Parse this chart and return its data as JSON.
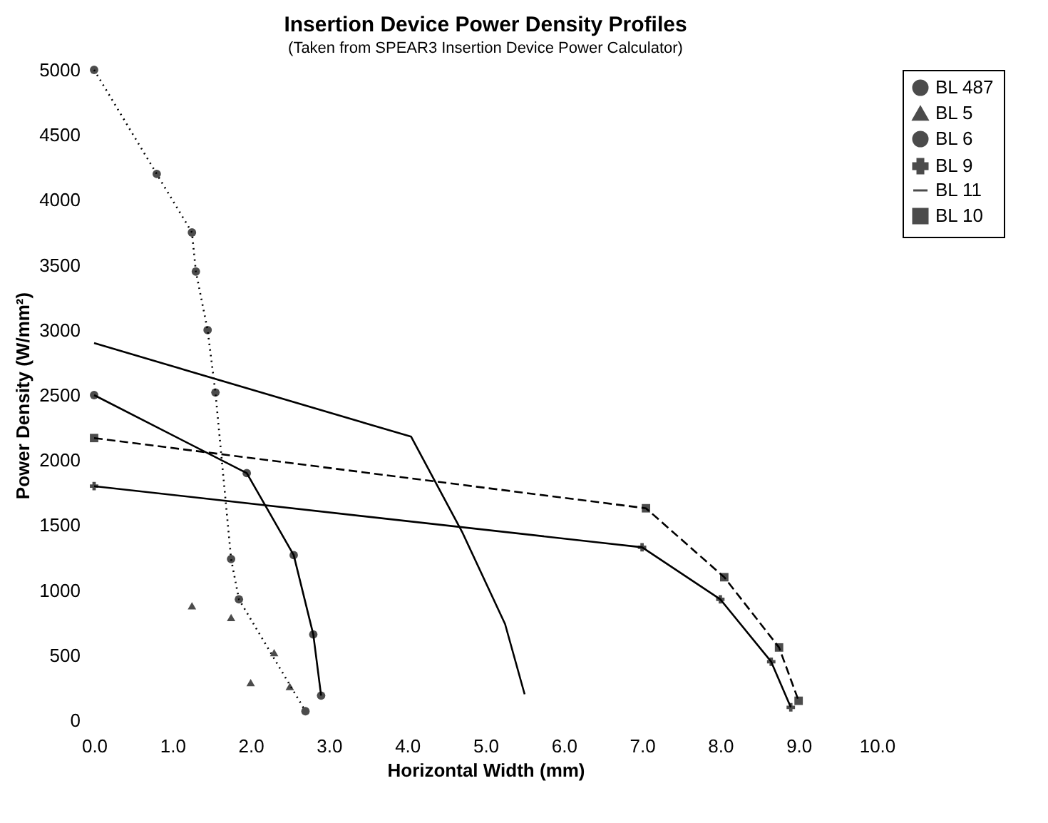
{
  "chart_data": {
    "type": "line",
    "title": "Insertion Device Power Density Profiles",
    "subtitle": "(Taken from SPEAR3 Insertion Device Power Calculator)",
    "xlabel": "Horizontal Width (mm)",
    "ylabel": "Power Density (W/mm²)",
    "xlim": [
      0,
      10
    ],
    "ylim": [
      0,
      5000
    ],
    "xticks": [
      {
        "value": 0,
        "label": "0.0"
      },
      {
        "value": 1,
        "label": "1.0"
      },
      {
        "value": 2,
        "label": "2.0"
      },
      {
        "value": 3,
        "label": "3.0"
      },
      {
        "value": 4,
        "label": "4.0"
      },
      {
        "value": 5,
        "label": "5.0"
      },
      {
        "value": 6,
        "label": "6.0"
      },
      {
        "value": 7,
        "label": "7.0"
      },
      {
        "value": 8,
        "label": "8.0"
      },
      {
        "value": 9,
        "label": "9.0"
      },
      {
        "value": 10,
        "label": "10.0"
      }
    ],
    "yticks": [
      0,
      500,
      1000,
      1500,
      2000,
      2500,
      3000,
      3500,
      4000,
      4500,
      5000
    ],
    "grid": false,
    "legend": "right",
    "series": [
      {
        "name": "BL 487",
        "color": "#000000",
        "marker": "circle",
        "line_style": "solid",
        "x": [
          0,
          1.95,
          2.55,
          2.8,
          2.9
        ],
        "values": [
          2500,
          1900,
          1270,
          660,
          190
        ]
      },
      {
        "name": "BL 5",
        "type": "scatter",
        "color": "#000000",
        "marker": "triangle",
        "x": [
          1.25,
          1.75,
          2.3,
          2.5,
          2.0
        ],
        "values": [
          880,
          790,
          520,
          260,
          290
        ]
      },
      {
        "name": "BL 6",
        "color": "#000000",
        "marker": "circle",
        "line_style": "dotted",
        "x": [
          0,
          0.8,
          1.25,
          1.3,
          1.45,
          1.55,
          1.75,
          1.85,
          2.7
        ],
        "values": [
          5000,
          4200,
          3750,
          3450,
          3000,
          2520,
          1240,
          930,
          70
        ]
      },
      {
        "name": "BL 9",
        "color": "#000000",
        "marker": "cross",
        "line_style": "solid",
        "x": [
          0,
          7.0,
          8.0,
          8.65,
          8.9
        ],
        "values": [
          1800,
          1330,
          930,
          450,
          100
        ]
      },
      {
        "name": "BL 11",
        "color": "#000000",
        "marker": "none",
        "line_style": "solid",
        "x": [
          0,
          4.05,
          4.7,
          5.25,
          5.5
        ],
        "values": [
          2900,
          2180,
          1450,
          740,
          200
        ]
      },
      {
        "name": "BL 10",
        "color": "#000000",
        "marker": "square",
        "line_style": "dashed",
        "x": [
          0,
          7.05,
          8.05,
          8.75,
          9.0
        ],
        "values": [
          2170,
          1630,
          1100,
          560,
          150
        ]
      }
    ]
  }
}
